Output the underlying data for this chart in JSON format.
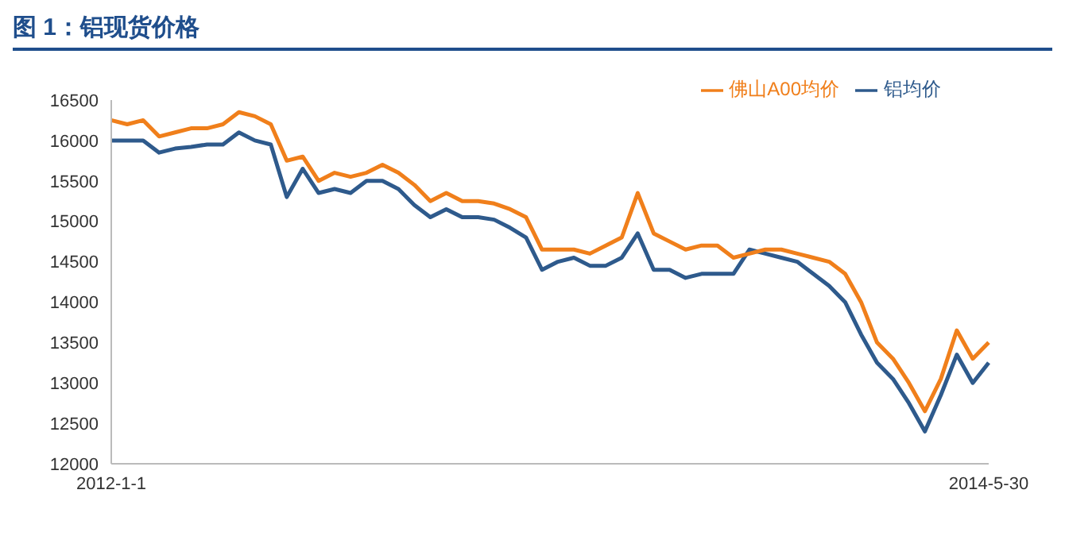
{
  "chart_data": {
    "type": "line",
    "title": "图 1：铝现货价格",
    "categories": [
      "2012-1-1",
      null,
      null,
      null,
      null,
      null,
      null,
      null,
      null,
      null,
      null,
      null,
      null,
      null,
      null,
      null,
      null,
      null,
      null,
      null,
      null,
      null,
      null,
      null,
      null,
      null,
      null,
      null,
      null,
      null,
      null,
      null,
      null,
      null,
      null,
      null,
      null,
      null,
      null,
      null,
      null,
      null,
      null,
      null,
      null,
      null,
      null,
      null,
      null,
      null,
      null,
      null,
      null,
      null,
      null,
      "2014-5-30"
    ],
    "series": [
      {
        "name": "铝均价",
        "color": "#2e5a8c",
        "values": [
          16000,
          16000,
          16000,
          15850,
          15900,
          15920,
          15950,
          15950,
          16100,
          16000,
          15950,
          15300,
          15650,
          15350,
          15400,
          15350,
          15500,
          15500,
          15400,
          15200,
          15050,
          15150,
          15050,
          15050,
          15020,
          14920,
          14800,
          14400,
          14500,
          14550,
          14450,
          14450,
          14550,
          14850,
          14400,
          14400,
          14300,
          14350,
          14350,
          14350,
          14650,
          14600,
          14550,
          14500,
          14350,
          14200,
          14000,
          13600,
          13250,
          13050,
          12750,
          12400,
          12850,
          13350,
          13000,
          13250
        ]
      },
      {
        "name": "佛山A00均价",
        "color": "#f07f1b",
        "values": [
          16250,
          16200,
          16250,
          16050,
          16100,
          16150,
          16150,
          16200,
          16350,
          16300,
          16200,
          15750,
          15800,
          15500,
          15600,
          15550,
          15600,
          15700,
          15600,
          15450,
          15250,
          15350,
          15250,
          15250,
          15220,
          15150,
          15050,
          14650,
          14650,
          14650,
          14600,
          14700,
          14800,
          15350,
          14850,
          14750,
          14650,
          14700,
          14700,
          14550,
          14600,
          14650,
          14650,
          14600,
          14550,
          14500,
          14350,
          14000,
          13500,
          13300,
          13000,
          12650,
          13050,
          13650,
          13300,
          13500
        ]
      }
    ],
    "ylim": [
      12000,
      16500
    ],
    "yticks": [
      12000,
      12500,
      13000,
      13500,
      14000,
      14500,
      15000,
      15500,
      16000,
      16500
    ],
    "grid": false,
    "legend": "top right",
    "marker": "none",
    "line_style": "solid"
  }
}
